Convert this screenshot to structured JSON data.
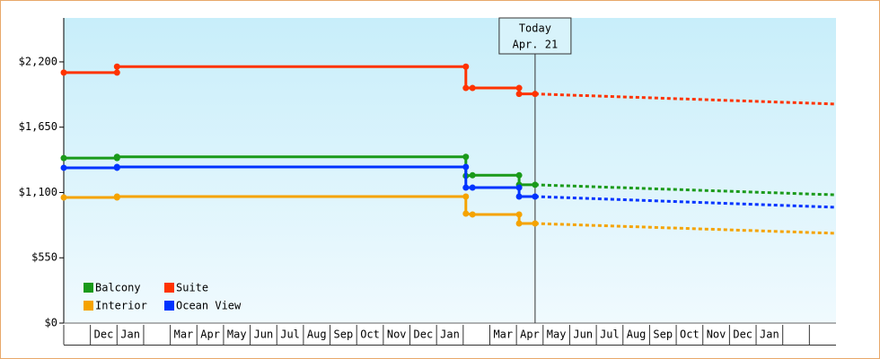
{
  "chart_data": {
    "type": "step-line",
    "ylim": [
      0,
      2570
    ],
    "yticks": [
      {
        "value": 0,
        "label": "$0"
      },
      {
        "value": 550,
        "label": "$550"
      },
      {
        "value": 1100,
        "label": "$1,100"
      },
      {
        "value": 1650,
        "label": "$1,650"
      },
      {
        "value": 2200,
        "label": "$2,200"
      }
    ],
    "xlim": [
      0,
      29
    ],
    "categories": [
      null,
      "Dec",
      "Jan",
      null,
      "Mar",
      "Apr",
      "May",
      "Jun",
      "Jul",
      "Aug",
      "Sep",
      "Oct",
      "Nov",
      "Dec",
      "Jan",
      null,
      "Mar",
      "Apr",
      "May",
      "Jun",
      "Jul",
      "Aug",
      "Sep",
      "Oct",
      "Nov",
      "Dec",
      "Jan",
      null,
      null
    ],
    "legend": "lower left",
    "today": {
      "x": 17.7,
      "label": "Today",
      "date": "Apr. 21"
    },
    "forecast_x": [
      17.7,
      29
    ],
    "series": [
      {
        "name": "Balcony",
        "color": "#1a9a1a",
        "x": [
          0,
          2,
          2,
          15.1,
          15.1,
          15.35,
          17.1,
          17.1,
          17.7
        ],
        "values": [
          1390,
          1390,
          1400,
          1400,
          1240,
          1245,
          1245,
          1165,
          1165
        ],
        "forecast_values": [
          1165,
          1080
        ]
      },
      {
        "name": "Suite",
        "color": "#ff3300",
        "x": [
          0,
          2,
          2,
          15.1,
          15.1,
          15.35,
          17.1,
          17.1,
          17.7
        ],
        "values": [
          2110,
          2110,
          2160,
          2160,
          1980,
          1980,
          1980,
          1930,
          1930
        ],
        "forecast_values": [
          1930,
          1845
        ]
      },
      {
        "name": "Interior",
        "color": "#f5a300",
        "x": [
          0,
          2,
          2,
          15.1,
          15.1,
          15.35,
          17.1,
          17.1,
          17.7
        ],
        "values": [
          1058,
          1058,
          1066,
          1066,
          922,
          915,
          915,
          839,
          839
        ],
        "forecast_values": [
          839,
          756
        ]
      },
      {
        "name": "Ocean View",
        "color": "#0033ff",
        "x": [
          0,
          2,
          2,
          15.1,
          15.1,
          15.35,
          17.1,
          17.1,
          17.7
        ],
        "values": [
          1308,
          1308,
          1315,
          1315,
          1141,
          1141,
          1141,
          1066,
          1066
        ],
        "forecast_values": [
          1066,
          975
        ]
      }
    ]
  }
}
